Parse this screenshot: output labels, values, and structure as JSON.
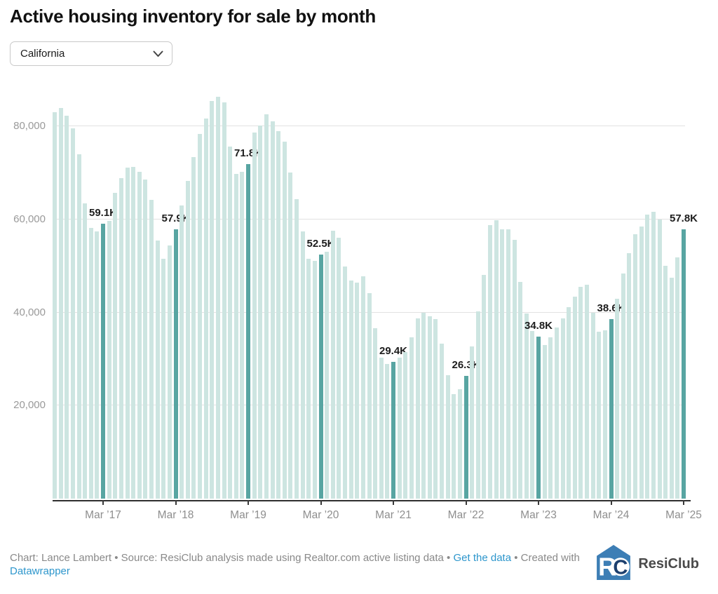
{
  "title": "Active housing inventory for sale by month",
  "dropdown": {
    "value": "California"
  },
  "chart_data": {
    "type": "bar",
    "title": "Active housing inventory for sale by month",
    "xlabel": "",
    "ylabel": "",
    "values_unit": "thousands of active listings",
    "ylim": [
      0,
      88.3
    ],
    "grid": true,
    "bar_color": "#cde5e1",
    "highlight_color": "#58a5a2",
    "values": [
      83.0,
      84.0,
      82.3,
      79.5,
      74.0,
      63.4,
      58.2,
      57.4,
      59.1,
      59.6,
      65.7,
      68.8,
      71.1,
      71.2,
      70.2,
      68.6,
      64.2,
      55.4,
      51.6,
      54.4,
      57.9,
      63.0,
      68.2,
      73.4,
      78.4,
      81.6,
      85.5,
      86.4,
      85.1,
      75.6,
      69.7,
      70.2,
      71.8,
      78.6,
      80.2,
      82.5,
      81.1,
      79.0,
      76.7,
      70.0,
      64.4,
      57.4,
      51.5,
      51.1,
      52.5,
      53.1,
      57.6,
      56.0,
      49.9,
      46.9,
      46.4,
      47.7,
      44.1,
      36.6,
      30.3,
      29.0,
      29.4,
      30.3,
      31.5,
      34.6,
      38.8,
      40.0,
      39.2,
      38.6,
      33.3,
      26.5,
      22.5,
      23.5,
      26.3,
      32.7,
      40.3,
      48.0,
      58.7,
      59.8,
      57.8,
      57.9,
      55.6,
      46.6,
      39.8,
      36.0,
      34.8,
      33.0,
      34.6,
      36.8,
      38.8,
      41.2,
      43.4,
      45.5,
      45.9,
      39.9,
      35.9,
      36.1,
      38.6,
      42.9,
      48.3,
      52.8,
      56.8,
      58.4,
      61.0,
      61.7,
      60.0,
      50.1,
      47.5,
      51.8,
      57.8
    ],
    "highlights": [
      {
        "index": 8,
        "label": "59.1K"
      },
      {
        "index": 20,
        "label": "57.9K"
      },
      {
        "index": 32,
        "label": "71.8K"
      },
      {
        "index": 44,
        "label": "52.5K"
      },
      {
        "index": 56,
        "label": "29.4K"
      },
      {
        "index": 68,
        "label": "26.3K"
      },
      {
        "index": 80,
        "label": "34.8K"
      },
      {
        "index": 92,
        "label": "38.6K"
      },
      {
        "index": 104,
        "label": "57.8K"
      }
    ],
    "x_ticks": [
      {
        "index": 8,
        "label": "Mar ’17"
      },
      {
        "index": 20,
        "label": "Mar ’18"
      },
      {
        "index": 32,
        "label": "Mar ’19"
      },
      {
        "index": 44,
        "label": "Mar ’20"
      },
      {
        "index": 56,
        "label": "Mar ’21"
      },
      {
        "index": 68,
        "label": "Mar ’22"
      },
      {
        "index": 80,
        "label": "Mar ’23"
      },
      {
        "index": 92,
        "label": "Mar ’24"
      },
      {
        "index": 104,
        "label": "Mar ’25"
      }
    ],
    "y_ticks": [
      {
        "value": 20,
        "label": "20,000"
      },
      {
        "value": 40,
        "label": "40,000"
      },
      {
        "value": 60,
        "label": "60,000"
      },
      {
        "value": 80,
        "label": "80,000"
      }
    ],
    "legend": "none"
  },
  "footer": {
    "segments": [
      {
        "text": "Chart: Lance Lambert • Source: ResiClub analysis made using Realtor.com active listing data • ",
        "link": false
      },
      {
        "text": "Get the data",
        "link": true
      },
      {
        "text": " • Created with ",
        "link": false
      },
      {
        "text": "Datawrapper",
        "link": true
      }
    ]
  },
  "logo": {
    "text": "ResiClub",
    "blue": "#3d7eb5",
    "navy": "#1c3f6e"
  }
}
